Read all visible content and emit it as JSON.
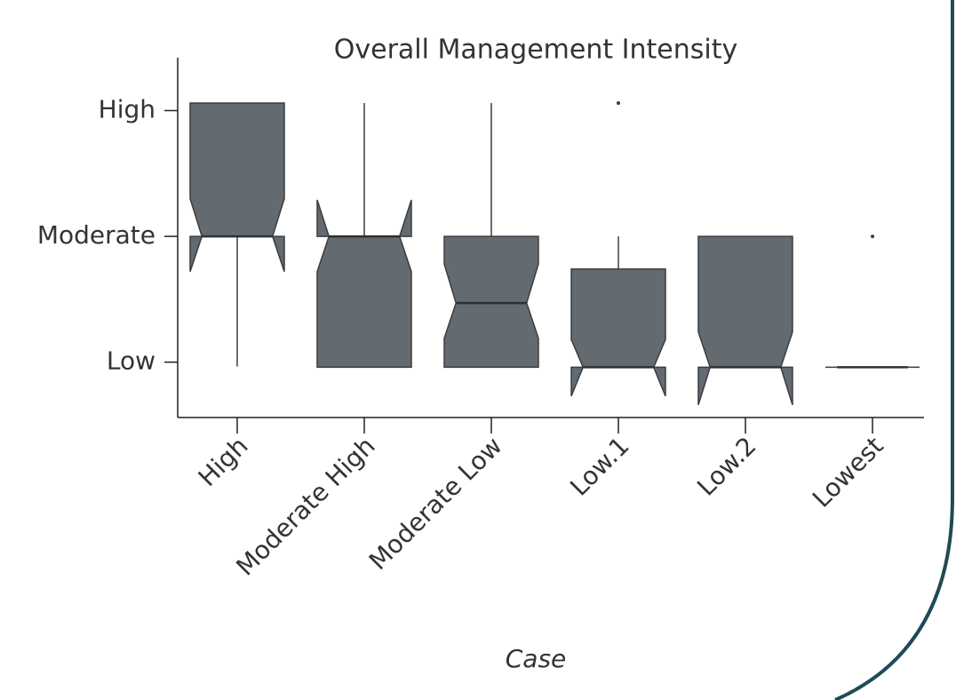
{
  "chart_data": {
    "type": "box",
    "title": "Overall Management Intensity",
    "x_label": "Case",
    "categories": [
      "High",
      "Moderate High",
      "Moderate Low",
      "Low.1",
      "Low.2",
      "Lowest"
    ],
    "color": "#636a70",
    "boxes": [
      {
        "q1": 2.0,
        "median": 2.0,
        "q3": 3.06,
        "whislo": 0.965,
        "whishi": 3.06,
        "notch_low": 1.72,
        "notch_high": 2.3,
        "fliers": []
      },
      {
        "q1": 0.96,
        "median": 2.0,
        "q3": 2.0,
        "whislo": 0.96,
        "whishi": 3.06,
        "notch_low": 1.72,
        "notch_high": 2.29,
        "fliers": []
      },
      {
        "q1": 0.96,
        "median": 1.47,
        "q3": 2.0,
        "whislo": 0.96,
        "whishi": 3.06,
        "notch_low": 1.19,
        "notch_high": 1.78,
        "fliers": []
      },
      {
        "q1": 0.96,
        "median": 0.96,
        "q3": 1.74,
        "whislo": 0.96,
        "whishi": 2.0,
        "notch_low": 0.73,
        "notch_high": 1.18,
        "fliers": [
          3.06
        ]
      },
      {
        "q1": 0.96,
        "median": 0.96,
        "q3": 2.0,
        "whislo": 0.96,
        "whishi": 2.0,
        "notch_low": 0.66,
        "notch_high": 1.24,
        "fliers": []
      },
      {
        "q1": 0.96,
        "median": 0.96,
        "q3": 0.96,
        "whislo": 0.96,
        "whishi": 0.96,
        "notch_low": 0.96,
        "notch_high": 0.96,
        "fliers": [
          2.0
        ]
      }
    ],
    "ylim": [
      0.56,
      3.42
    ],
    "yticks": [
      {
        "value": 1,
        "label": "Low"
      },
      {
        "value": 2,
        "label": "Moderate"
      },
      {
        "value": 3,
        "label": "High"
      }
    ]
  }
}
